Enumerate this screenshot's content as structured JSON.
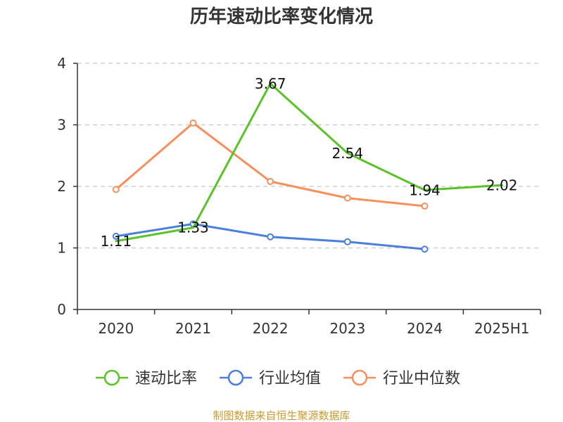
{
  "chart_data": {
    "type": "line",
    "title": "历年速动比率变化情况",
    "categories": [
      "2020",
      "2021",
      "2022",
      "2023",
      "2024",
      "2025H1"
    ],
    "ylim": [
      0,
      4
    ],
    "yticks": [
      0,
      1,
      2,
      3,
      4
    ],
    "grid": true,
    "legend_position": "bottom",
    "series": [
      {
        "name": "速动比率",
        "color": "#5bc22a",
        "values": [
          1.11,
          1.33,
          3.67,
          2.54,
          1.94,
          2.02
        ],
        "labels": [
          "1.11",
          "1.33",
          "3.67",
          "2.54",
          "1.94",
          "2.02"
        ],
        "markers": false
      },
      {
        "name": "行业均值",
        "color": "#4a7fdc",
        "values": [
          1.19,
          1.39,
          1.18,
          1.1,
          0.98,
          null
        ],
        "markers": true
      },
      {
        "name": "行业中位数",
        "color": "#f5905c",
        "values": [
          1.95,
          3.03,
          2.08,
          1.81,
          1.68,
          null
        ],
        "markers": true
      }
    ]
  },
  "footer": {
    "source_text": "制图数据来自恒生聚源数据库",
    "color": "#c99a2e"
  }
}
